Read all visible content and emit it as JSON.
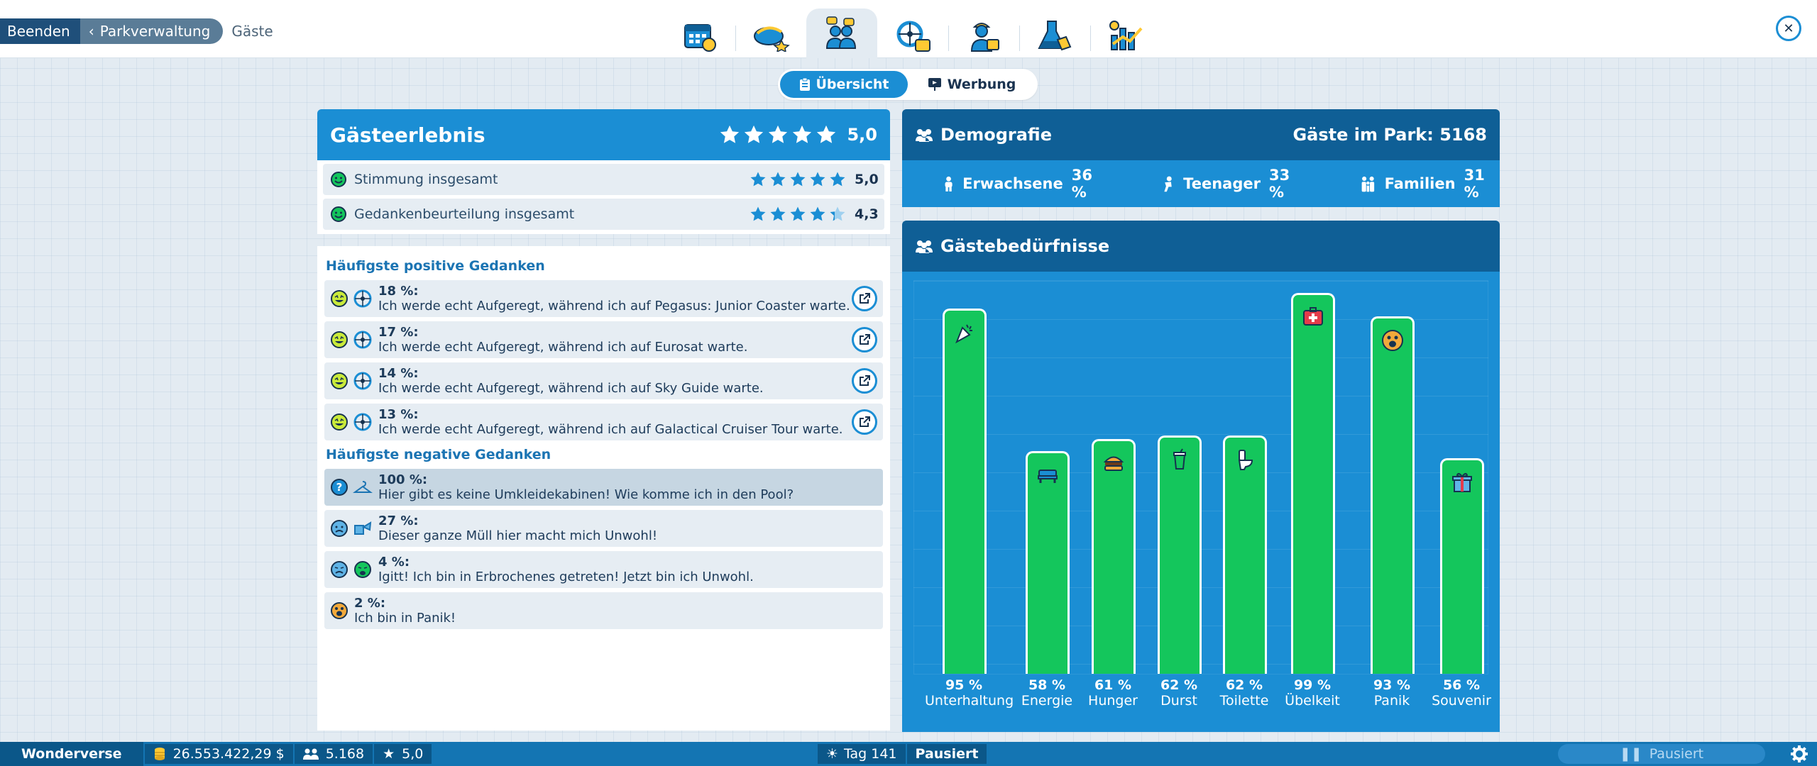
{
  "breadcrumb": {
    "quit": "Beenden",
    "park": "Parkverwaltung",
    "current": "Gäste"
  },
  "main_tabs": [
    "calendar-icon",
    "rides-icon",
    "guests-icon",
    "attractions-icon",
    "staff-icon",
    "research-icon",
    "finances-icon"
  ],
  "subtabs": {
    "overview": "Übersicht",
    "advertising": "Werbung"
  },
  "experience": {
    "title": "Gästeerlebnis",
    "rating": "5,0",
    "stars_value": 5.0,
    "rows": [
      {
        "label": "Stimmung insgesamt",
        "rating": "5,0",
        "stars_value": 5.0
      },
      {
        "label": "Gedankenbeurteilung insgesamt",
        "rating": "4,3",
        "stars_value": 4.3
      }
    ]
  },
  "positive": {
    "title": "Häufigste positive Gedanken",
    "items": [
      {
        "pct": "18 %:",
        "text": "Ich werde echt Aufgeregt, während ich auf Pegasus: Junior Coaster warte."
      },
      {
        "pct": "17 %:",
        "text": "Ich werde echt Aufgeregt, während ich auf Eurosat warte."
      },
      {
        "pct": "14 %:",
        "text": "Ich werde echt Aufgeregt, während ich auf Sky Guide warte."
      },
      {
        "pct": "13 %:",
        "text": "Ich werde echt Aufgeregt, während ich auf Galactical Cruiser Tour warte."
      }
    ]
  },
  "negative": {
    "title": "Häufigste negative Gedanken",
    "items": [
      {
        "pct": "100 %:",
        "text": "Hier gibt es keine Umkleidekabinen! Wie komme ich in den Pool?"
      },
      {
        "pct": "27 %:",
        "text": "Dieser ganze Müll hier macht mich Unwohl!"
      },
      {
        "pct": "4 %:",
        "text": "Igitt! Ich bin in Erbrochenes getreten! Jetzt bin ich Unwohl."
      },
      {
        "pct": "2 %:",
        "text": "Ich bin in Panik!"
      }
    ]
  },
  "demographics": {
    "title": "Demografie",
    "guests_in_park": "Gäste im Park: 5168",
    "adults": {
      "label": "Erwachsene",
      "value": "36 %"
    },
    "teens": {
      "label": "Teenager",
      "value": "33 %"
    },
    "families": {
      "label": "Familien",
      "value": "31 %"
    }
  },
  "needs": {
    "title": "Gästebedürfnisse"
  },
  "chart_data": {
    "type": "bar",
    "categories": [
      "Unterhaltung",
      "Energie",
      "Hunger",
      "Durst",
      "Toilette",
      "Übelkeit",
      "Panik",
      "Souvenir"
    ],
    "values": [
      95,
      58,
      61,
      62,
      62,
      99,
      93,
      56
    ],
    "value_labels": [
      "95 %",
      "58 %",
      "61 %",
      "62 %",
      "62 %",
      "99 %",
      "93 %",
      "56 %"
    ],
    "icons": [
      "party-icon",
      "bench-icon",
      "burger-icon",
      "drink-icon",
      "toilet-icon",
      "first-aid-icon",
      "panic-face-icon",
      "gift-icon"
    ],
    "ylim": [
      0,
      100
    ],
    "bar_color": "#14c65c"
  },
  "statusbar": {
    "park_name": "Wonderverse",
    "money": "26.553.422,29 $",
    "guests": "5.168",
    "rating": "5,0",
    "day": "Tag 141",
    "state": "Pausiert",
    "pause_label": "Pausiert"
  },
  "colors": {
    "accent": "#1b8ed4",
    "header_dark": "#0f5f96",
    "bar_green": "#14c65c",
    "star": "#1b8ed4"
  }
}
